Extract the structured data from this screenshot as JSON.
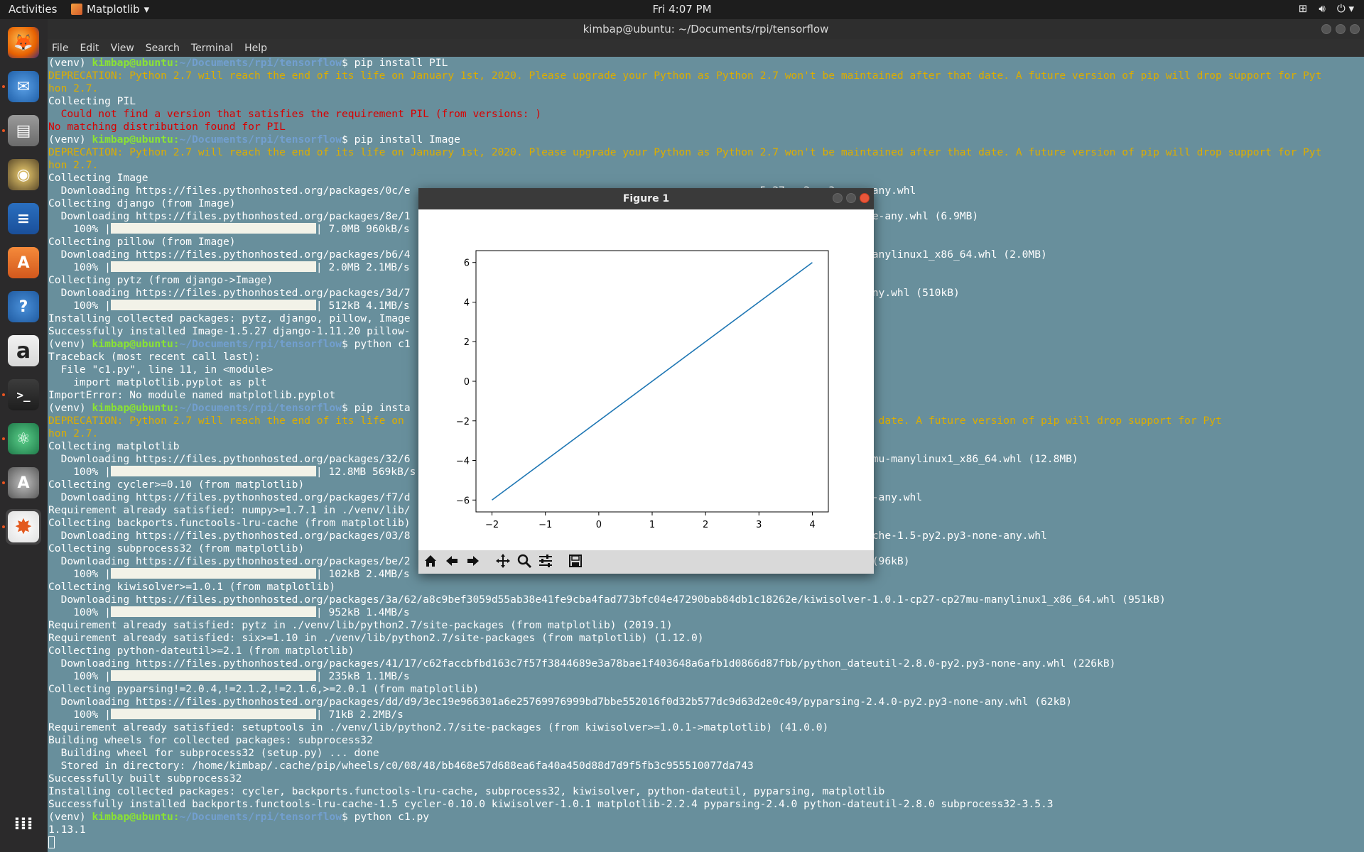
{
  "topbar": {
    "activities": "Activities",
    "app_name": "Matplotlib",
    "clock": "Fri  4:07 PM"
  },
  "dock": {
    "items": [
      "firefox-icon",
      "thunderbird-icon",
      "files-icon",
      "rhythmbox-icon",
      "libreoffice-writer-icon",
      "software-center-icon",
      "help-icon",
      "amazon-icon",
      "terminal-icon",
      "atom-icon",
      "software-updater-icon",
      "matplotlib-icon",
      "show-apps-icon"
    ]
  },
  "terminal": {
    "title": "kimbap@ubuntu: ~/Documents/rpi/tensorflow",
    "menu": [
      "File",
      "Edit",
      "View",
      "Search",
      "Terminal",
      "Help"
    ],
    "prompt": {
      "venv": "(venv) ",
      "user": "kimbap@ubuntu",
      "path": "~/Documents/rpi/tensorflow",
      "sym": "$ "
    },
    "lines": [
      {
        "t": "prompt",
        "cmd": "pip install PIL"
      },
      {
        "t": "warn",
        "text": "DEPRECATION: Python 2.7 will reach the end of its life on January 1st, 2020. Please upgrade your Python as Python 2.7 won't be maintained after that date. A future version of pip will drop support for Pyt"
      },
      {
        "t": "warn",
        "text": "hon 2.7."
      },
      {
        "t": "plain",
        "text": "Collecting PIL"
      },
      {
        "t": "red",
        "text": "  Could not find a version that satisfies the requirement PIL (from versions: )"
      },
      {
        "t": "red",
        "text": "No matching distribution found for PIL"
      },
      {
        "t": "prompt",
        "cmd": "pip install Image"
      },
      {
        "t": "warn",
        "text": "DEPRECATION: Python 2.7 will reach the end of its life on January 1st, 2020. Please upgrade your Python as Python 2.7 won't be maintained after that date. A future version of pip will drop support for Pyt"
      },
      {
        "t": "warn",
        "text": "hon 2.7."
      },
      {
        "t": "plain",
        "text": "Collecting Image"
      },
      {
        "t": "plain",
        "text": "  Downloading https://files.pythonhosted.org/packages/0c/e                                                        5.27-py2.py3-none-any.whl"
      },
      {
        "t": "plain",
        "text": "Collecting django (from Image)"
      },
      {
        "t": "plain",
        "text": "  Downloading https://files.pythonhosted.org/packages/8e/1                                                        .11.20-py2.py3-none-any.whl (6.9MB)"
      },
      {
        "t": "bar",
        "pre": "    100% |",
        "post": "| 7.0MB 960kB/s"
      },
      {
        "t": "plain",
        "text": "Collecting pillow (from Image)"
      },
      {
        "t": "plain",
        "text": "  Downloading https://files.pythonhosted.org/packages/b6/4                                                        .0.0-cp27-cp27mu-manylinux1_x86_64.whl (2.0MB)"
      },
      {
        "t": "bar",
        "pre": "    100% |",
        "post": "| 2.0MB 2.1MB/s"
      },
      {
        "t": "plain",
        "text": "Collecting pytz (from django->Image)"
      },
      {
        "t": "plain",
        "text": "  Downloading https://files.pythonhosted.org/packages/3d/7                                                        9.1-py2.py3-none-any.whl (510kB)"
      },
      {
        "t": "bar",
        "pre": "    100% |",
        "post": "| 512kB 4.1MB/s"
      },
      {
        "t": "plain",
        "text": "Installing collected packages: pytz, django, pillow, Image"
      },
      {
        "t": "plain",
        "text": "Successfully installed Image-1.5.27 django-1.11.20 pillow-"
      },
      {
        "t": "prompt",
        "cmd": "python c1"
      },
      {
        "t": "plain",
        "text": "Traceback (most recent call last):"
      },
      {
        "t": "plain",
        "text": "  File \"c1.py\", line 11, in <module>"
      },
      {
        "t": "plain",
        "text": "    import matplotlib.pyplot as plt"
      },
      {
        "t": "plain",
        "text": "ImportError: No module named matplotlib.pyplot"
      },
      {
        "t": "prompt",
        "cmd": "pip insta"
      },
      {
        "t": "warn",
        "text": "DEPRECATION: Python 2.7 will reach the end of its life on                                                        intained after that date. A future version of pip will drop support for Pyt"
      },
      {
        "t": "warn",
        "text": "hon 2.7."
      },
      {
        "t": "plain",
        "text": "Collecting matplotlib"
      },
      {
        "t": "plain",
        "text": "  Downloading https://files.pythonhosted.org/packages/32/6                                                        ib-2.2.4-cp27-cp27mu-manylinux1_x86_64.whl (12.8MB)"
      },
      {
        "t": "bar",
        "pre": "    100% |",
        "post": "| 12.8MB 569kB/s"
      },
      {
        "t": "plain",
        "text": "Collecting cycler>=0.10 (from matplotlib)"
      },
      {
        "t": "plain",
        "text": "  Downloading https://files.pythonhosted.org/packages/f7/d                                                        .10.0-py2.py3-none-any.whl"
      },
      {
        "t": "plain",
        "text": "Requirement already satisfied: numpy>=1.7.1 in ./venv/lib/"
      },
      {
        "t": "plain",
        "text": "Collecting backports.functools-lru-cache (from matplotlib)"
      },
      {
        "t": "plain",
        "text": "  Downloading https://files.pythonhosted.org/packages/03/8                                                        s.functools_lru_cache-1.5-py2.py3-none-any.whl"
      },
      {
        "t": "plain",
        "text": "Collecting subprocess32 (from matplotlib)"
      },
      {
        "t": "plain",
        "text": "  Downloading https://files.pythonhosted.org/packages/be/2                                                        ss32-3.5.3.tar.gz (96kB)"
      },
      {
        "t": "bar",
        "pre": "    100% |",
        "post": "| 102kB 2.4MB/s"
      },
      {
        "t": "plain",
        "text": "Collecting kiwisolver>=1.0.1 (from matplotlib)"
      },
      {
        "t": "plain",
        "text": "  Downloading https://files.pythonhosted.org/packages/3a/62/a8c9bef3059d55ab38e41fe9cba4fad773bfc04e47290bab84db1c18262e/kiwisolver-1.0.1-cp27-cp27mu-manylinux1_x86_64.whl (951kB)"
      },
      {
        "t": "bar",
        "pre": "    100% |",
        "post": "| 952kB 1.4MB/s"
      },
      {
        "t": "plain",
        "text": "Requirement already satisfied: pytz in ./venv/lib/python2.7/site-packages (from matplotlib) (2019.1)"
      },
      {
        "t": "plain",
        "text": "Requirement already satisfied: six>=1.10 in ./venv/lib/python2.7/site-packages (from matplotlib) (1.12.0)"
      },
      {
        "t": "plain",
        "text": "Collecting python-dateutil>=2.1 (from matplotlib)"
      },
      {
        "t": "plain",
        "text": "  Downloading https://files.pythonhosted.org/packages/41/17/c62faccbfbd163c7f57f3844689e3a78bae1f403648a6afb1d0866d87fbb/python_dateutil-2.8.0-py2.py3-none-any.whl (226kB)"
      },
      {
        "t": "bar",
        "pre": "    100% |",
        "post": "| 235kB 1.1MB/s"
      },
      {
        "t": "plain",
        "text": "Collecting pyparsing!=2.0.4,!=2.1.2,!=2.1.6,>=2.0.1 (from matplotlib)"
      },
      {
        "t": "plain",
        "text": "  Downloading https://files.pythonhosted.org/packages/dd/d9/3ec19e966301a6e25769976999bd7bbe552016f0d32b577dc9d63d2e0c49/pyparsing-2.4.0-py2.py3-none-any.whl (62kB)"
      },
      {
        "t": "bar",
        "pre": "    100% |",
        "post": "| 71kB 2.2MB/s"
      },
      {
        "t": "plain",
        "text": "Requirement already satisfied: setuptools in ./venv/lib/python2.7/site-packages (from kiwisolver>=1.0.1->matplotlib) (41.0.0)"
      },
      {
        "t": "plain",
        "text": "Building wheels for collected packages: subprocess32"
      },
      {
        "t": "plain",
        "text": "  Building wheel for subprocess32 (setup.py) ... done"
      },
      {
        "t": "plain",
        "text": "  Stored in directory: /home/kimbap/.cache/pip/wheels/c0/08/48/bb468e57d688ea6fa40a450d88d7d9f5fb3c955510077da743"
      },
      {
        "t": "plain",
        "text": "Successfully built subprocess32"
      },
      {
        "t": "plain",
        "text": "Installing collected packages: cycler, backports.functools-lru-cache, subprocess32, kiwisolver, python-dateutil, pyparsing, matplotlib"
      },
      {
        "t": "plain",
        "text": "Successfully installed backports.functools-lru-cache-1.5 cycler-0.10.0 kiwisolver-1.0.1 matplotlib-2.2.4 pyparsing-2.4.0 python-dateutil-2.8.0 subprocess32-3.5.3"
      },
      {
        "t": "prompt",
        "cmd": "python c1.py"
      },
      {
        "t": "plain",
        "text": "1.13.1"
      },
      {
        "t": "cursor",
        "text": ""
      }
    ]
  },
  "figure": {
    "title": "Figure 1",
    "toolbar": [
      "home-icon",
      "back-icon",
      "forward-icon",
      "pan-icon",
      "zoom-icon",
      "configure-subplots-icon",
      "save-icon"
    ],
    "line_color": "#1f77b4"
  },
  "chart_data": {
    "type": "line",
    "title": "",
    "xlabel": "",
    "ylabel": "",
    "x": [
      -2,
      4
    ],
    "series": [
      {
        "values": [
          -6,
          6
        ]
      }
    ],
    "xlim": [
      -2.3,
      4.3
    ],
    "ylim": [
      -6.6,
      6.6
    ],
    "xticks": [
      -2,
      -1,
      0,
      1,
      2,
      3,
      4
    ],
    "yticks": [
      -6,
      -4,
      -2,
      0,
      2,
      4,
      6
    ],
    "grid": false
  },
  "colors": {
    "terminal_bg": "#688f9c",
    "warn": "#dcad00",
    "error": "#d80000",
    "prompt_user": "#8ae234",
    "prompt_path": "#729fcf"
  }
}
